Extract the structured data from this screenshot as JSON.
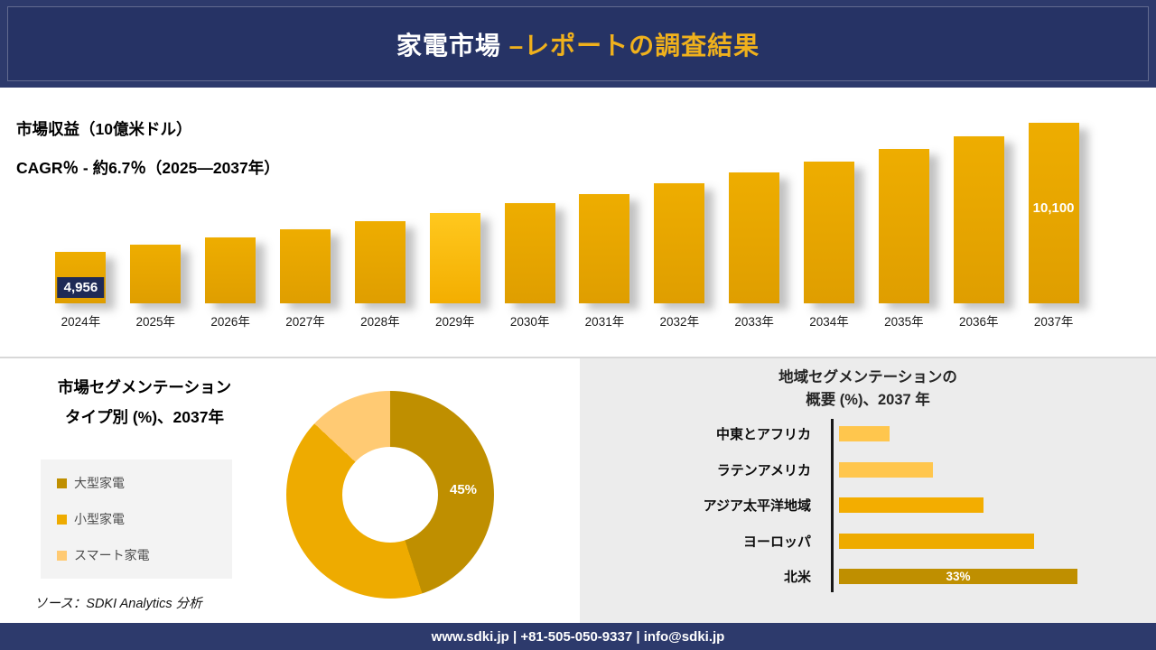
{
  "header": {
    "title_main": "家電市場 ",
    "title_accent": "–レポートの調査結果"
  },
  "colors": {
    "navy": "#2d3a6c",
    "gold_accent": "#f0b11c",
    "bar_gold": "#eead00"
  },
  "chart_data": [
    {
      "type": "bar",
      "title": "市場収益（10億米ドル）",
      "subtitle": "CAGR％ - 約6.7％（2025―2037年）",
      "categories": [
        "2024年",
        "2025年",
        "2026年",
        "2027年",
        "2028年",
        "2029年",
        "2030年",
        "2031年",
        "2032年",
        "2033年",
        "2034年",
        "2035年",
        "2036年",
        "2037年"
      ],
      "values": [
        4956,
        5235,
        5530,
        5841,
        6170,
        6517,
        6884,
        7272,
        7681,
        8113,
        8570,
        9052,
        9562,
        10100
      ],
      "value_labels": {
        "0": "4,956",
        "13": "10,100"
      },
      "ylim": [
        0,
        10500
      ],
      "bar_color": "#eead00",
      "highlight_index": 5,
      "highlight_color": "#ffc81e",
      "legend_position": "none",
      "grid": false
    },
    {
      "type": "pie",
      "donut": true,
      "title": "市場セグメンテーション タイプ別 (%)、2037年",
      "labels": [
        "大型家電",
        "小型家電",
        "スマート家電"
      ],
      "values": [
        45,
        42,
        13
      ],
      "colors": [
        "#bf8f00",
        "#eeab00",
        "#ffca73"
      ],
      "shown_label": "45%",
      "legend_position": "left"
    },
    {
      "type": "bar",
      "orientation": "horizontal",
      "title": "地域セグメンテーションの概要 (%)、2037 年",
      "categories": [
        "中東とアフリカ",
        "ラテンアメリカ",
        "アジア太平洋地域",
        "ヨーロッパ",
        "北米"
      ],
      "values": [
        7,
        13,
        20,
        27,
        33
      ],
      "value_labels": {
        "4": "33%"
      },
      "colors": [
        "#ffc64d",
        "#ffc64d",
        "#f3ad00",
        "#eeab00",
        "#bf8f00"
      ],
      "grid": false
    }
  ],
  "segmentation": {
    "title_line1": "市場セグメンテーション",
    "title_line2": "タイプ別 (%)、2037年"
  },
  "regional": {
    "title_line1": "地域セグメンテーションの",
    "title_line2": "概要 (%)、2037 年"
  },
  "source": "ソース：SDKI Analytics 分析",
  "footer": {
    "text": "www.sdki.jp | +81-505-050-9337 | info@sdki.jp"
  }
}
